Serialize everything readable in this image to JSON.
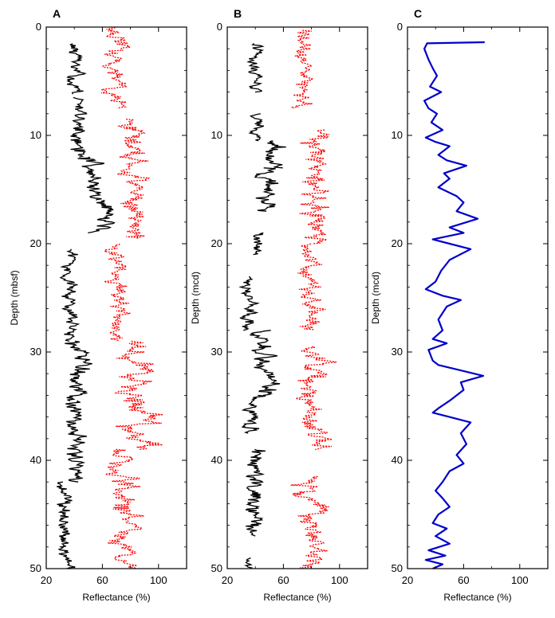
{
  "chart_data": [
    {
      "panel": "A",
      "type": "line",
      "xlabel": "Reflectance (%)",
      "ylabel": "Depth (mbsf)",
      "xlim": [
        20,
        120
      ],
      "ylim": [
        0,
        50
      ],
      "y_inverted": true,
      "xticks": [
        20,
        60,
        100
      ],
      "yticks": [
        0,
        10,
        20,
        30,
        40,
        50
      ],
      "series": [
        {
          "color": "#000000",
          "style": "solid",
          "role": "low reflectance",
          "segments": [
            {
              "depth_range": [
                1.5,
                6.2
              ],
              "base": 40,
              "amp": 6
            },
            {
              "depth_range": [
                6.5,
                9.0
              ],
              "base": 42,
              "amp": 5
            },
            {
              "depth_range": [
                9.0,
                12.0
              ],
              "base": 45,
              "amp": 8
            },
            {
              "depth_range": [
                12.0,
                16.0
              ],
              "base": 53,
              "amp": 9
            },
            {
              "depth_range": [
                16.0,
                19.0
              ],
              "base": 60,
              "amp": 10
            },
            {
              "depth_range": [
                20.5,
                29.0
              ],
              "base": 38,
              "amp": 6
            },
            {
              "depth_range": [
                29.0,
                34.5
              ],
              "base": 44,
              "amp": 9
            },
            {
              "depth_range": [
                34.5,
                42.0
              ],
              "base": 42,
              "amp": 8
            },
            {
              "depth_range": [
                42.0,
                50.0
              ],
              "base": 33,
              "amp": 6
            }
          ]
        },
        {
          "color": "#ff0000",
          "style": "dotted",
          "role": "high reflectance",
          "segments": [
            {
              "depth_range": [
                0.0,
                7.5
              ],
              "base": 70,
              "amp": 9
            },
            {
              "depth_range": [
                8.5,
                19.5
              ],
              "base": 82,
              "amp": 11
            },
            {
              "depth_range": [
                20.0,
                29.0
              ],
              "base": 72,
              "amp": 9
            },
            {
              "depth_range": [
                29.0,
                39.0
              ],
              "base": 84,
              "amp": 14
            },
            {
              "depth_range": [
                39.0,
                50.0
              ],
              "base": 76,
              "amp": 12
            }
          ]
        }
      ]
    },
    {
      "panel": "B",
      "type": "line",
      "xlabel": "Reflectance (%)",
      "ylabel": "Depth (mcd)",
      "xlim": [
        20,
        120
      ],
      "ylim": [
        0,
        50
      ],
      "y_inverted": true,
      "xticks": [
        20,
        60,
        100
      ],
      "yticks": [
        0,
        10,
        20,
        30,
        40,
        50
      ],
      "series": [
        {
          "color": "#000000",
          "style": "solid",
          "role": "low reflectance",
          "segments": [
            {
              "depth_range": [
                1.5,
                6.0
              ],
              "base": 40,
              "amp": 6
            },
            {
              "depth_range": [
                8.0,
                10.5
              ],
              "base": 42,
              "amp": 5
            },
            {
              "depth_range": [
                10.5,
                13.0
              ],
              "base": 52,
              "amp": 9
            },
            {
              "depth_range": [
                13.0,
                17.0
              ],
              "base": 48,
              "amp": 9
            },
            {
              "depth_range": [
                19.0,
                21.0
              ],
              "base": 44,
              "amp": 6
            },
            {
              "depth_range": [
                23.0,
                28.0
              ],
              "base": 36,
              "amp": 6
            },
            {
              "depth_range": [
                28.0,
                34.0
              ],
              "base": 46,
              "amp": 10
            },
            {
              "depth_range": [
                34.0,
                37.5
              ],
              "base": 40,
              "amp": 8
            },
            {
              "depth_range": [
                39.0,
                47.0
              ],
              "base": 40,
              "amp": 8
            },
            {
              "depth_range": [
                49.0,
                50.0
              ],
              "base": 35,
              "amp": 4
            }
          ]
        },
        {
          "color": "#ff0000",
          "style": "dotted",
          "role": "high reflectance",
          "segments": [
            {
              "depth_range": [
                0.3,
                7.5
              ],
              "base": 74,
              "amp": 8
            },
            {
              "depth_range": [
                9.5,
                20.0
              ],
              "base": 84,
              "amp": 12
            },
            {
              "depth_range": [
                20.0,
                28.0
              ],
              "base": 78,
              "amp": 10
            },
            {
              "depth_range": [
                29.5,
                39.0
              ],
              "base": 82,
              "amp": 12
            },
            {
              "depth_range": [
                41.5,
                50.0
              ],
              "base": 80,
              "amp": 12
            }
          ]
        }
      ]
    },
    {
      "panel": "C",
      "type": "line",
      "xlabel": "Reflectance (%)",
      "ylabel": "Depth (mcd)",
      "xlim": [
        20,
        120
      ],
      "ylim": [
        0,
        50
      ],
      "y_inverted": true,
      "xticks": [
        20,
        60,
        100
      ],
      "yticks": [
        0,
        10,
        20,
        30,
        40,
        50
      ],
      "series": [
        {
          "color": "#0000cc",
          "style": "solid",
          "role": "smoothed reflectance",
          "points": [
            [
              75,
              1.4
            ],
            [
              34,
              1.5
            ],
            [
              32,
              2.0
            ],
            [
              35,
              3.0
            ],
            [
              38,
              3.8
            ],
            [
              41,
              4.5
            ],
            [
              36,
              5.5
            ],
            [
              44,
              6.0
            ],
            [
              32,
              6.8
            ],
            [
              35,
              7.5
            ],
            [
              41,
              8.0
            ],
            [
              37,
              8.8
            ],
            [
              45,
              9.5
            ],
            [
              33,
              10.2
            ],
            [
              40,
              10.6
            ],
            [
              50,
              11.0
            ],
            [
              42,
              11.8
            ],
            [
              48,
              12.3
            ],
            [
              62,
              12.8
            ],
            [
              46,
              13.5
            ],
            [
              50,
              14.0
            ],
            [
              42,
              14.8
            ],
            [
              55,
              15.6
            ],
            [
              60,
              16.2
            ],
            [
              55,
              17.0
            ],
            [
              70,
              17.7
            ],
            [
              50,
              18.5
            ],
            [
              60,
              19.0
            ],
            [
              38,
              19.6
            ],
            [
              50,
              20.0
            ],
            [
              65,
              20.5
            ],
            [
              50,
              21.5
            ],
            [
              44,
              22.5
            ],
            [
              40,
              23.5
            ],
            [
              33,
              24.2
            ],
            [
              45,
              24.8
            ],
            [
              58,
              25.2
            ],
            [
              48,
              25.8
            ],
            [
              42,
              27.0
            ],
            [
              45,
              28.0
            ],
            [
              38,
              28.8
            ],
            [
              48,
              29.2
            ],
            [
              35,
              29.8
            ],
            [
              38,
              30.8
            ],
            [
              42,
              31.2
            ],
            [
              55,
              31.6
            ],
            [
              74,
              32.2
            ],
            [
              58,
              32.8
            ],
            [
              60,
              33.5
            ],
            [
              50,
              34.5
            ],
            [
              42,
              35.2
            ],
            [
              38,
              35.6
            ],
            [
              50,
              36.0
            ],
            [
              65,
              36.5
            ],
            [
              58,
              37.5
            ],
            [
              62,
              38.5
            ],
            [
              55,
              39.5
            ],
            [
              60,
              40.3
            ],
            [
              50,
              41.0
            ],
            [
              45,
              42.0
            ],
            [
              40,
              42.8
            ],
            [
              45,
              43.5
            ],
            [
              50,
              44.3
            ],
            [
              42,
              45.0
            ],
            [
              38,
              45.8
            ],
            [
              48,
              46.3
            ],
            [
              40,
              47.0
            ],
            [
              50,
              47.7
            ],
            [
              35,
              48.3
            ],
            [
              47,
              48.8
            ],
            [
              33,
              49.2
            ],
            [
              45,
              49.6
            ],
            [
              38,
              50.0
            ]
          ]
        }
      ]
    }
  ]
}
